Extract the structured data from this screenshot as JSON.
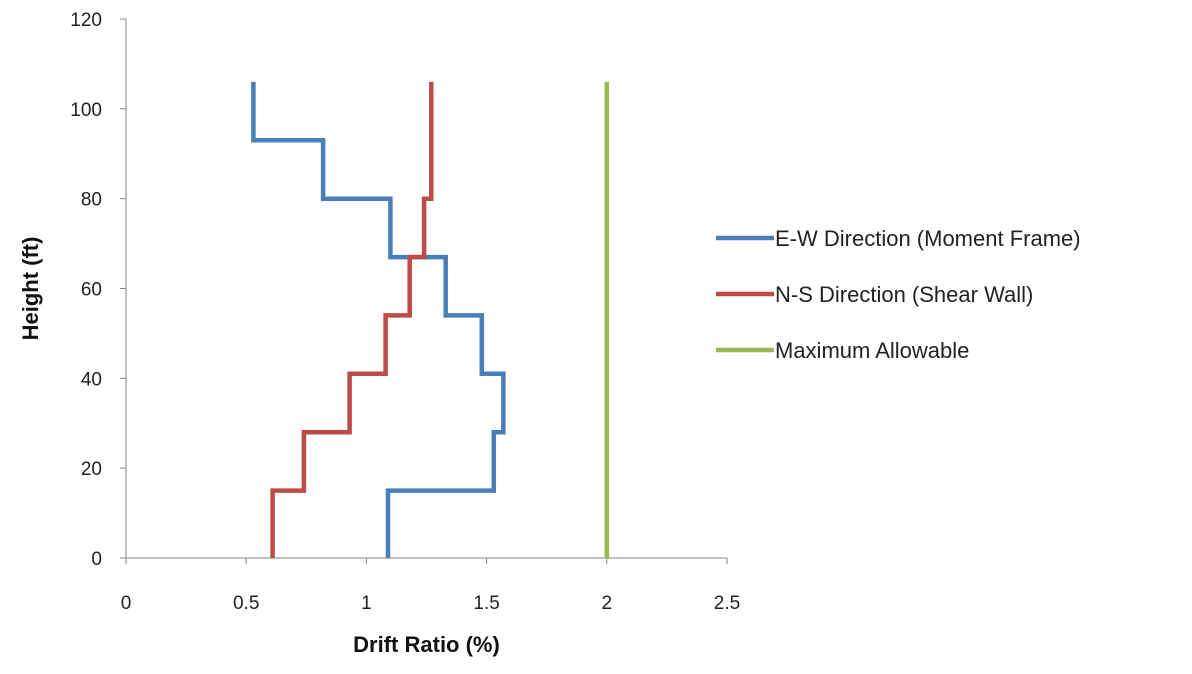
{
  "chart_data": {
    "type": "line",
    "title": "",
    "xlabel": "Drift Ratio (%)",
    "ylabel": "Height (ft)",
    "xlim": [
      0,
      2.5
    ],
    "ylim": [
      0,
      120
    ],
    "xticks": [
      0,
      0.5,
      1,
      1.5,
      2,
      2.5
    ],
    "xtick_labels": [
      "0",
      "0.5",
      "1",
      "1.5",
      "2",
      "2.5"
    ],
    "yticks": [
      0,
      20,
      40,
      60,
      80,
      100,
      120
    ],
    "ytick_labels": [
      "0",
      "20",
      "40",
      "60",
      "80",
      "100",
      "120"
    ],
    "grid": false,
    "legend_position": "right",
    "series": [
      {
        "name": "E-W Direction (Moment Frame)",
        "color": "#4a7ebb",
        "points": [
          [
            1.09,
            0
          ],
          [
            1.09,
            15
          ],
          [
            1.53,
            15
          ],
          [
            1.53,
            28
          ],
          [
            1.57,
            28
          ],
          [
            1.57,
            41
          ],
          [
            1.48,
            41
          ],
          [
            1.48,
            54
          ],
          [
            1.33,
            54
          ],
          [
            1.33,
            67
          ],
          [
            1.1,
            67
          ],
          [
            1.1,
            80
          ],
          [
            0.82,
            80
          ],
          [
            0.82,
            93
          ],
          [
            0.53,
            93
          ],
          [
            0.53,
            106
          ]
        ]
      },
      {
        "name": "N-S Direction (Shear Wall)",
        "color": "#be4b48",
        "points": [
          [
            0.61,
            0
          ],
          [
            0.61,
            15
          ],
          [
            0.74,
            15
          ],
          [
            0.74,
            28
          ],
          [
            0.93,
            28
          ],
          [
            0.93,
            41
          ],
          [
            1.08,
            41
          ],
          [
            1.08,
            54
          ],
          [
            1.18,
            54
          ],
          [
            1.18,
            67
          ],
          [
            1.24,
            67
          ],
          [
            1.24,
            80
          ],
          [
            1.27,
            80
          ],
          [
            1.27,
            93
          ],
          [
            1.27,
            106
          ]
        ]
      },
      {
        "name": "Maximum Allowable",
        "color": "#98b954",
        "points": [
          [
            2.0,
            0
          ],
          [
            2.0,
            106
          ]
        ]
      }
    ]
  }
}
